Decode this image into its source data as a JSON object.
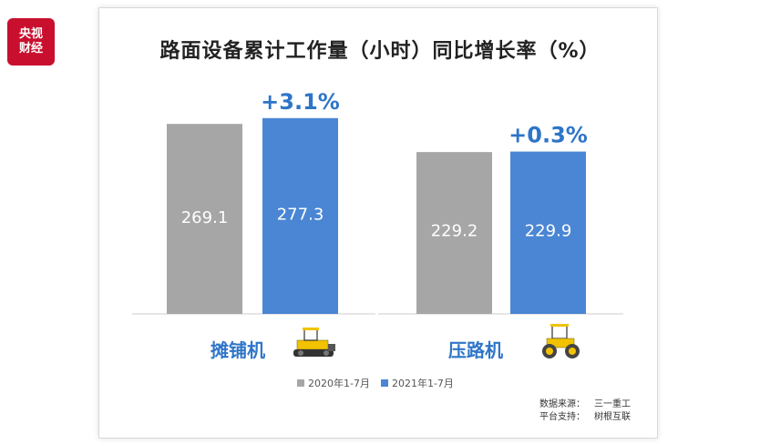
{
  "logo": {
    "line1": "央视",
    "line2": "财经",
    "color": "#c8102e"
  },
  "source": {
    "label1": "数据来源：",
    "value1": "三一重工",
    "label2": "平台支持：",
    "value2": "树根互联"
  },
  "icons": [
    "paver-icon",
    "roller-icon"
  ],
  "chart_data": {
    "type": "bar",
    "title": "路面设备累计工作量（小时）同比增长率（%）",
    "categories": [
      "摊铺机",
      "压路机"
    ],
    "series": [
      {
        "name": "2020年1-7月",
        "values": [
          269.1,
          229.2
        ],
        "color": "#a6a6a6"
      },
      {
        "name": "2021年1-7月",
        "values": [
          277.3,
          229.9
        ],
        "color": "#4a86d4"
      }
    ],
    "value_labels": [
      [
        "269.1",
        "277.3"
      ],
      [
        "229.2",
        "229.9"
      ]
    ],
    "growth_labels": [
      "+3.1%",
      "+0.3%"
    ],
    "growth_color": "#2e75c8",
    "category_color": "#2e75c8",
    "legend_position": "bottom",
    "grid": false,
    "ylim": [
      0,
      290
    ]
  }
}
